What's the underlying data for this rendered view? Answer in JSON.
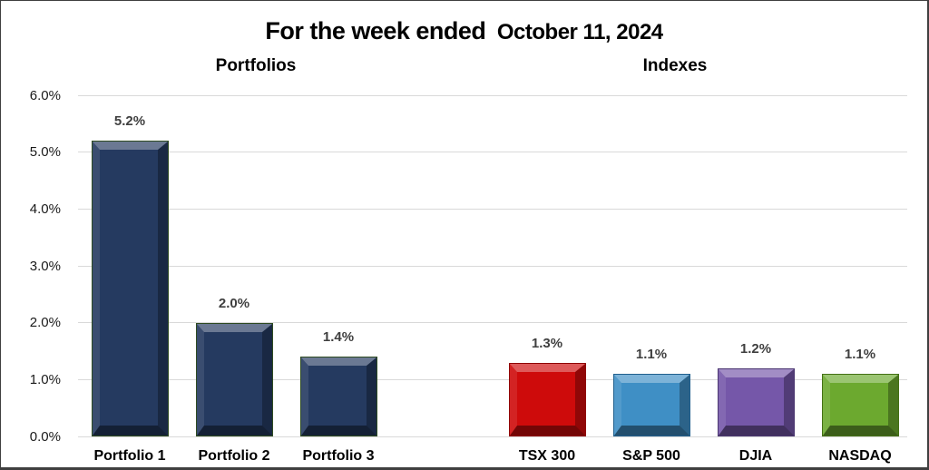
{
  "header": {
    "title_main": "For the week ended",
    "title_date": "October 11, 2024"
  },
  "chart_data": {
    "type": "bar",
    "title": "For the week ended October 11, 2024",
    "group_labels": [
      "Portfolios",
      "Indexes"
    ],
    "categories": [
      "Portfolio 1",
      "Portfolio 2",
      "Portfolio 3",
      "TSX 300",
      "S&P 500",
      "DJIA",
      "NASDAQ"
    ],
    "values": [
      5.2,
      2.0,
      1.4,
      1.3,
      1.1,
      1.2,
      1.1
    ],
    "xlabel": "",
    "ylabel": "",
    "ylim": [
      0,
      6
    ],
    "ytick_labels": [
      "6.0%",
      "5.0%",
      "4.0%",
      "3.0%",
      "2.0%",
      "1.0%",
      "0.0%"
    ],
    "grid": true,
    "legend": false,
    "bars": [
      {
        "label": "Portfolio 1",
        "value": 5.2,
        "display": "5.2%",
        "group": "Portfolios",
        "fill": "#253a60",
        "edge": "#2e4b21"
      },
      {
        "label": "Portfolio 2",
        "value": 2.0,
        "display": "2.0%",
        "group": "Portfolios",
        "fill": "#253a60",
        "edge": "#2e4b21"
      },
      {
        "label": "Portfolio 3",
        "value": 1.4,
        "display": "1.4%",
        "group": "Portfolios",
        "fill": "#253a60",
        "edge": "#2e4b21"
      },
      {
        "label": "TSX 300",
        "value": 1.3,
        "display": "1.3%",
        "group": "Indexes",
        "fill": "#ce0b0b",
        "edge": "#8f0505"
      },
      {
        "label": "S&P 500",
        "value": 1.1,
        "display": "1.1%",
        "group": "Indexes",
        "fill": "#3f8fc5",
        "edge": "#205f8d"
      },
      {
        "label": "DJIA",
        "value": 1.2,
        "display": "1.2%",
        "group": "Indexes",
        "fill": "#7557a9",
        "edge": "#4a3570"
      },
      {
        "label": "NASDAQ",
        "value": 1.1,
        "display": "1.1%",
        "group": "Indexes",
        "fill": "#6ca92f",
        "edge": "#447015"
      }
    ],
    "colors": {
      "portfolio_navy": "#253a60",
      "tsx_red": "#ce0b0b",
      "sp500_blue": "#3f8fc5",
      "djia_purple": "#7557a9",
      "nasdaq_green": "#6ca92f",
      "gridline_gray": "#d9d9d9",
      "data_label_gray": "#3f3f3f"
    }
  }
}
